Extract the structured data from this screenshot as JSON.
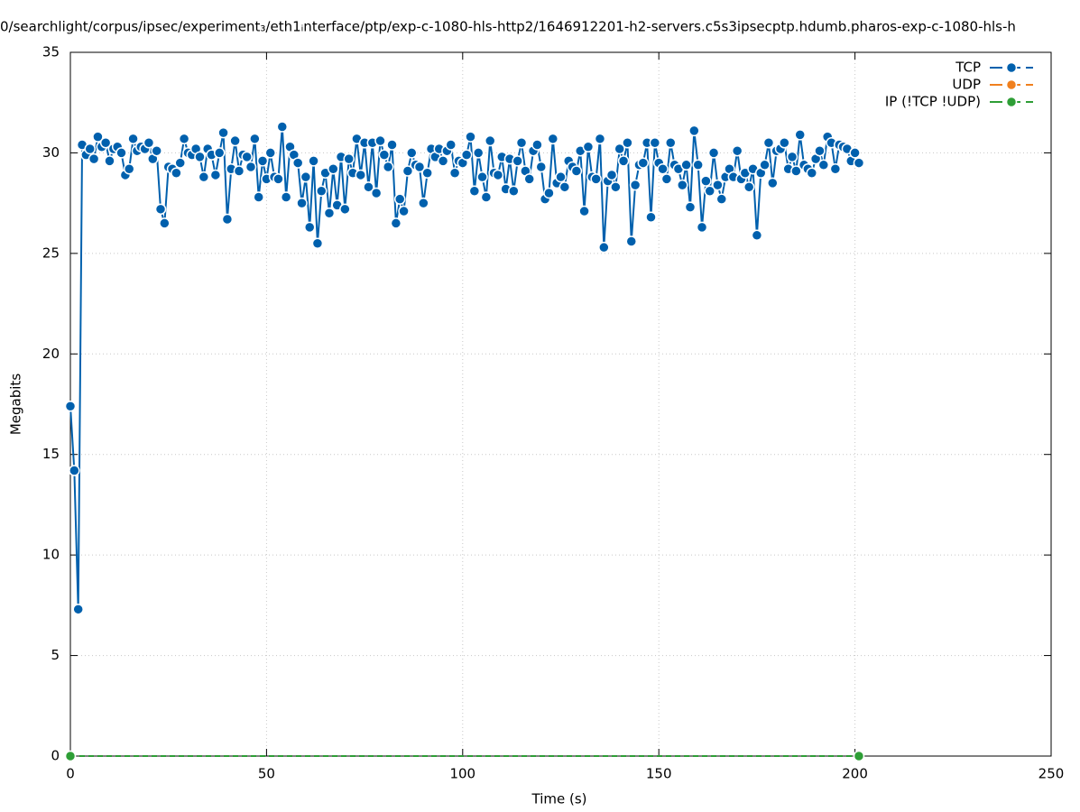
{
  "chart_data": {
    "type": "line",
    "title": "0/searchlight/corpus/ipsec/experiment₃/eth1ᵢnterface/ptp/exp-c-1080-hls-http2/1646912201-h2-servers.c5s3ipsecptp.hdumb.pharos-exp-c-1080-hls-h",
    "x_label": "Time (s)",
    "y_label": "Megabits",
    "xlim": [
      0,
      250
    ],
    "xticks": [
      0,
      50,
      100,
      150,
      200,
      250
    ],
    "ylim": [
      0,
      35
    ],
    "yticks": [
      0,
      5,
      10,
      15,
      20,
      25,
      30,
      35
    ],
    "grid": true,
    "legend": "top-right",
    "series": [
      {
        "name": "TCP",
        "color": "#0060ad",
        "x": [
          0,
          1,
          2,
          3,
          4,
          5,
          6,
          7,
          8,
          9,
          10,
          11,
          12,
          13,
          14,
          15,
          16,
          17,
          18,
          19,
          20,
          21,
          22,
          23,
          24,
          25,
          26,
          27,
          28,
          29,
          30,
          31,
          32,
          33,
          34,
          35,
          36,
          37,
          38,
          39,
          40,
          41,
          42,
          43,
          44,
          45,
          46,
          47,
          48,
          49,
          50,
          51,
          52,
          53,
          54,
          55,
          56,
          57,
          58,
          59,
          60,
          61,
          62,
          63,
          64,
          65,
          66,
          67,
          68,
          69,
          70,
          71,
          72,
          73,
          74,
          75,
          76,
          77,
          78,
          79,
          80,
          81,
          82,
          83,
          84,
          85,
          86,
          87,
          88,
          89,
          90,
          91,
          92,
          93,
          94,
          95,
          96,
          97,
          98,
          99,
          100,
          101,
          102,
          103,
          104,
          105,
          106,
          107,
          108,
          109,
          110,
          111,
          112,
          113,
          114,
          115,
          116,
          117,
          118,
          119,
          120,
          121,
          122,
          123,
          124,
          125,
          126,
          127,
          128,
          129,
          130,
          131,
          132,
          133,
          134,
          135,
          136,
          137,
          138,
          139,
          140,
          141,
          142,
          143,
          144,
          145,
          146,
          147,
          148,
          149,
          150,
          151,
          152,
          153,
          154,
          155,
          156,
          157,
          158,
          159,
          160,
          161,
          162,
          163,
          164,
          165,
          166,
          167,
          168,
          169,
          170,
          171,
          172,
          173,
          174,
          175,
          176,
          177,
          178,
          179,
          180,
          181,
          182,
          183,
          184,
          185,
          186,
          187,
          188,
          189,
          190,
          191,
          192,
          193,
          194,
          195,
          196,
          197,
          198,
          199,
          200,
          201
        ],
        "values": [
          17.4,
          14.2,
          7.3,
          30.4,
          29.9,
          30.2,
          29.7,
          30.8,
          30.3,
          30.5,
          29.6,
          30.2,
          30.3,
          30.0,
          28.9,
          29.2,
          30.7,
          30.1,
          30.3,
          30.2,
          30.5,
          29.7,
          30.1,
          27.2,
          26.5,
          29.3,
          29.2,
          29.0,
          29.5,
          30.7,
          30.0,
          29.9,
          30.2,
          29.8,
          28.8,
          30.2,
          29.9,
          28.9,
          30.0,
          31.0,
          26.7,
          29.2,
          30.6,
          29.1,
          29.9,
          29.8,
          29.3,
          30.7,
          27.8,
          29.6,
          28.7,
          30.0,
          28.8,
          28.7,
          31.3,
          27.8,
          30.3,
          29.9,
          29.5,
          27.5,
          28.8,
          26.3,
          29.6,
          25.5,
          28.1,
          29.0,
          27.0,
          29.2,
          27.4,
          29.8,
          27.2,
          29.7,
          29.0,
          30.7,
          28.9,
          30.5,
          28.3,
          30.5,
          28.0,
          30.6,
          29.9,
          29.3,
          30.4,
          26.5,
          27.7,
          27.1,
          29.1,
          30.0,
          29.4,
          29.3,
          27.5,
          29.0,
          30.2,
          29.8,
          30.2,
          29.6,
          30.1,
          30.4,
          29.0,
          29.6,
          29.5,
          29.9,
          30.8,
          28.1,
          30.0,
          28.8,
          27.8,
          30.6,
          29.0,
          28.9,
          29.8,
          28.2,
          29.7,
          28.1,
          29.6,
          30.5,
          29.1,
          28.7,
          30.1,
          30.4,
          29.3,
          27.7,
          28.0,
          30.7,
          28.5,
          28.8,
          28.3,
          29.6,
          29.3,
          29.1,
          30.1,
          27.1,
          30.3,
          28.8,
          28.7,
          30.7,
          25.3,
          28.6,
          28.9,
          28.3,
          30.2,
          29.6,
          30.5,
          25.6,
          28.4,
          29.4,
          29.5,
          30.5,
          26.8,
          30.5,
          29.5,
          29.2,
          28.7,
          30.5,
          29.4,
          29.2,
          28.4,
          29.4,
          27.3,
          31.1,
          29.4,
          26.3,
          28.6,
          28.1,
          30.0,
          28.4,
          27.7,
          28.8,
          29.2,
          28.8,
          30.1,
          28.7,
          29.0,
          28.3,
          29.2,
          25.9,
          29.0,
          29.4,
          30.5,
          28.5,
          30.1,
          30.2,
          30.5,
          29.2,
          29.8,
          29.1,
          30.9,
          29.4,
          29.2,
          29.0,
          29.7,
          30.1,
          29.4,
          30.8,
          30.5,
          29.2,
          30.4,
          30.3,
          30.2,
          29.6,
          30.0,
          29.5
        ]
      },
      {
        "name": "UDP",
        "color": "#f0801e",
        "x": [],
        "values": []
      },
      {
        "name": "IP (!TCP  !UDP)",
        "color": "#2e9e36",
        "x": [
          0,
          201
        ],
        "values": [
          0,
          0
        ]
      }
    ]
  }
}
